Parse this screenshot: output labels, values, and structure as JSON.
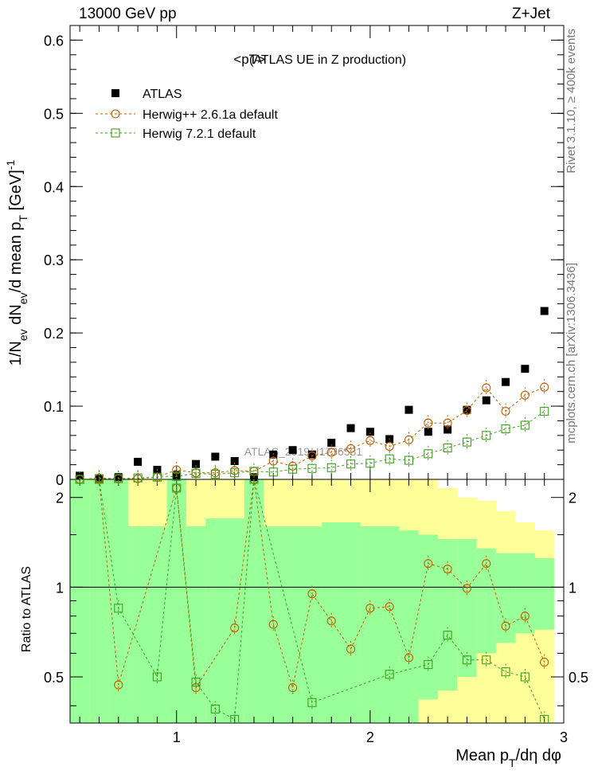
{
  "header": {
    "left": "13000 GeV pp",
    "right": "Z+Jet"
  },
  "side": {
    "rivet": "Rivet 3.1.10, ≥ 400k events",
    "mcplots": "mcplots.cern.ch [arXiv:1306.3436]"
  },
  "chart_data": [
    {
      "type": "scatter",
      "title": "<pT>",
      "subtitle": "(ATLAS UE in Z production)",
      "ylabel": "1/N_ev dN_ev/d mean p_T [GeV]^-1",
      "watermark": "ATLAS_2019_I1736531",
      "ylim": [
        0,
        0.62
      ],
      "yticks": [
        0,
        0.1,
        0.2,
        0.3,
        0.4,
        0.5,
        0.6
      ],
      "yticklabels": [
        "0",
        "0.1",
        "0.2",
        "0.3",
        "0.4",
        "0.5",
        "0.6"
      ],
      "xlim": [
        0.45,
        3.0
      ],
      "legend_position": "top-left",
      "legend": [
        "ATLAS",
        "Herwig++ 2.6.1a default",
        "Herwig 7.2.1 default"
      ],
      "x": [
        0.5,
        0.6,
        0.7,
        0.8,
        0.9,
        1.0,
        1.1,
        1.2,
        1.3,
        1.4,
        1.5,
        1.6,
        1.7,
        1.8,
        1.9,
        2.0,
        2.1,
        2.2,
        2.3,
        2.4,
        2.5,
        2.6,
        2.7,
        2.8,
        2.9
      ],
      "series": [
        {
          "name": "ATLAS",
          "color": "#000000",
          "marker": "filled-square",
          "values": [
            0.005,
            0.001,
            0.003,
            0.024,
            0.013,
            0.006,
            0.021,
            0.031,
            0.025,
            0.003,
            0.034,
            0.04,
            0.034,
            0.05,
            0.07,
            0.065,
            0.055,
            0.095,
            0.065,
            0.068,
            0.095,
            0.108,
            0.133,
            0.151,
            0.23
          ]
        },
        {
          "name": "Herwig++ 2.6.1a default",
          "color": "#c05f00",
          "marker": "open-circle",
          "values": [
            0.0,
            0.002,
            0.001,
            0.001,
            0.003,
            0.013,
            0.009,
            0.009,
            0.012,
            0.011,
            0.025,
            0.018,
            0.032,
            0.037,
            0.042,
            0.053,
            0.045,
            0.054,
            0.077,
            0.077,
            0.094,
            0.125,
            0.093,
            0.115,
            0.126
          ]
        },
        {
          "name": "Herwig 7.2.1 default",
          "color": "#3f9f1f",
          "marker": "open-square",
          "values": [
            0.0,
            0.001,
            0.001,
            0.002,
            0.003,
            0.004,
            0.008,
            0.007,
            0.009,
            0.011,
            0.01,
            0.014,
            0.015,
            0.016,
            0.021,
            0.022,
            0.028,
            0.026,
            0.035,
            0.043,
            0.051,
            0.06,
            0.069,
            0.074,
            0.093
          ]
        }
      ]
    },
    {
      "type": "scatter",
      "ylabel": "Ratio to ATLAS",
      "xlabel": "Mean p_T/dη dφ",
      "ylim": [
        0.35,
        2.3
      ],
      "log_y": true,
      "yticks": [
        0.5,
        1,
        2
      ],
      "yticklabels": [
        "0.5",
        "1",
        "2"
      ],
      "xlim": [
        0.45,
        3.0
      ],
      "xticks": [
        1,
        2,
        3
      ],
      "xticklabels": [
        "1",
        "2",
        "3"
      ],
      "reference_line": 1,
      "band_colors": {
        "inner": "#99ff99",
        "outer": "#ffff99"
      },
      "bins": [
        0.45,
        0.55,
        0.65,
        0.75,
        0.85,
        0.95,
        1.05,
        1.15,
        1.25,
        1.35,
        1.45,
        1.55,
        1.65,
        1.75,
        1.85,
        1.95,
        2.05,
        2.15,
        2.25,
        2.35,
        2.45,
        2.55,
        2.65,
        2.75,
        2.85,
        2.95
      ],
      "band_inner_hi": [
        2.3,
        2.3,
        2.3,
        1.6,
        1.6,
        2.3,
        1.6,
        1.7,
        1.7,
        2.3,
        1.6,
        1.6,
        1.6,
        1.65,
        1.65,
        1.6,
        1.6,
        1.55,
        1.5,
        1.45,
        1.45,
        1.35,
        1.3,
        1.3,
        1.25
      ],
      "band_inner_lo": [
        0.35,
        0.35,
        0.35,
        0.35,
        0.35,
        0.35,
        0.35,
        0.35,
        0.35,
        0.35,
        0.35,
        0.35,
        0.35,
        0.35,
        0.35,
        0.35,
        0.35,
        0.35,
        0.42,
        0.45,
        0.5,
        0.6,
        0.65,
        0.7,
        0.72
      ],
      "band_outer_hi": [
        2.3,
        2.3,
        2.3,
        2.3,
        2.3,
        2.3,
        2.3,
        2.3,
        2.3,
        2.3,
        2.3,
        2.3,
        2.3,
        2.3,
        2.3,
        2.3,
        2.3,
        2.3,
        2.3,
        2.15,
        2.0,
        1.95,
        1.8,
        1.65,
        1.55
      ],
      "band_outer_lo": [
        0.35,
        0.35,
        0.35,
        0.35,
        0.35,
        0.35,
        0.35,
        0.35,
        0.35,
        0.35,
        0.35,
        0.35,
        0.35,
        0.35,
        0.35,
        0.35,
        0.35,
        0.35,
        0.35,
        0.35,
        0.35,
        0.35,
        0.35,
        0.35,
        0.35
      ],
      "band_outer_lo_yellow": [
        0.35,
        0.35,
        0.35,
        0.4,
        0.35,
        0.35,
        0.35,
        0.35,
        0.35,
        0.35,
        0.35,
        0.35,
        0.35,
        0.35,
        0.42,
        0.39,
        0.39,
        0.39,
        0.35,
        0.35,
        0.35,
        0.35,
        0.35,
        0.35,
        0.35
      ],
      "x": [
        0.5,
        0.6,
        0.7,
        0.8,
        0.9,
        1.0,
        1.1,
        1.2,
        1.3,
        1.4,
        1.5,
        1.6,
        1.7,
        1.8,
        1.9,
        2.0,
        2.1,
        2.2,
        2.3,
        2.4,
        2.5,
        2.6,
        2.7,
        2.8,
        2.9
      ],
      "series": [
        {
          "name": "Herwig++ 2.6.1a default",
          "color": "#c05f00",
          "marker": "open-circle",
          "values": [
            null,
            2.3,
            0.47,
            null,
            null,
            2.15,
            0.46,
            null,
            0.73,
            2.3,
            0.75,
            0.46,
            0.95,
            0.77,
            0.62,
            0.85,
            0.86,
            0.58,
            1.2,
            1.15,
            0.99,
            1.2,
            0.74,
            0.8,
            0.56
          ]
        },
        {
          "name": "Herwig 7.2.1 default",
          "color": "#3f9f1f",
          "marker": "open-square",
          "values": [
            null,
            2.3,
            0.85,
            null,
            0.5,
            2.15,
            0.48,
            0.39,
            0.36,
            2.3,
            null,
            null,
            0.41,
            null,
            null,
            null,
            0.51,
            null,
            0.55,
            0.69,
            0.57,
            0.57,
            0.52,
            0.5,
            0.36
          ]
        }
      ]
    }
  ]
}
